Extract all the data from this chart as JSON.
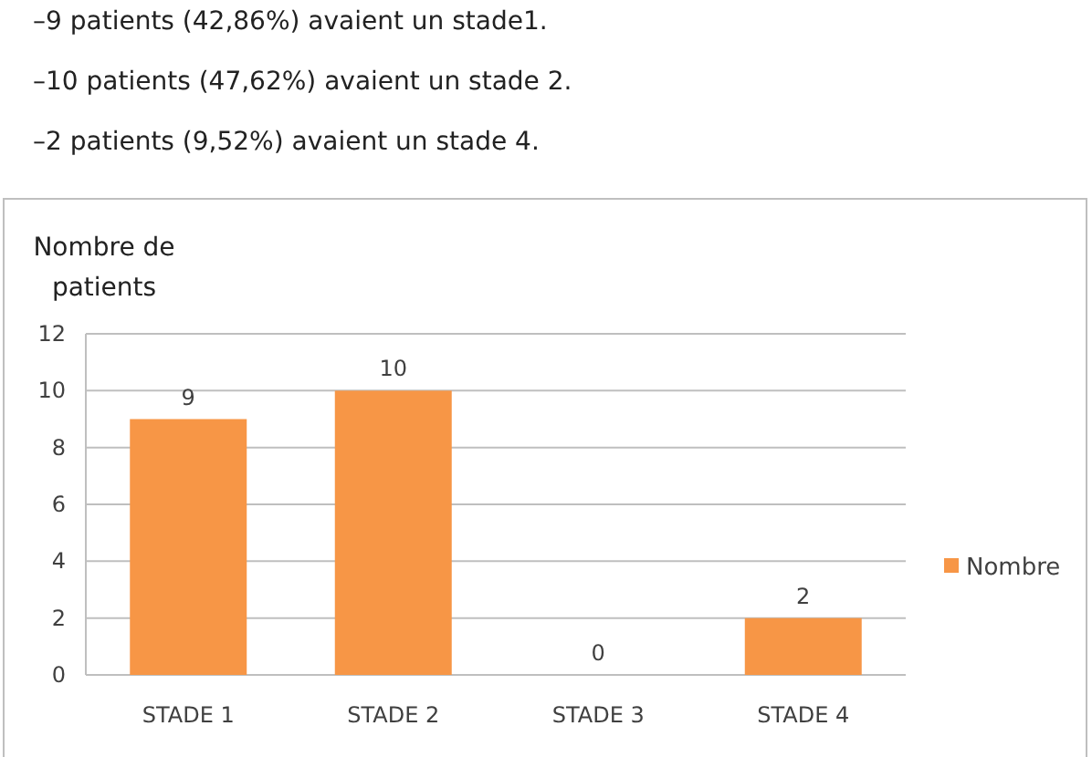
{
  "chart_data": {
    "type": "bar",
    "ylabel": "Nombre de patients",
    "annotations": [
      "–9 patients (42,86%) avaient un stade1.",
      "–10 patients (47,62%) avaient un stade 2.",
      "–2 patients (9,52%) avaient un stade 4."
    ],
    "categories": [
      "STADE 1",
      "STADE 2",
      "STADE 3",
      "STADE 4"
    ],
    "series": [
      {
        "name": "Nombre",
        "color": "#f79646",
        "values": [
          9,
          10,
          0,
          2
        ]
      }
    ],
    "ylim": [
      0,
      12
    ],
    "yticks": [
      0,
      2,
      4,
      6,
      8,
      10,
      12
    ],
    "grid": "y",
    "legend": "right",
    "data_labels": true
  }
}
